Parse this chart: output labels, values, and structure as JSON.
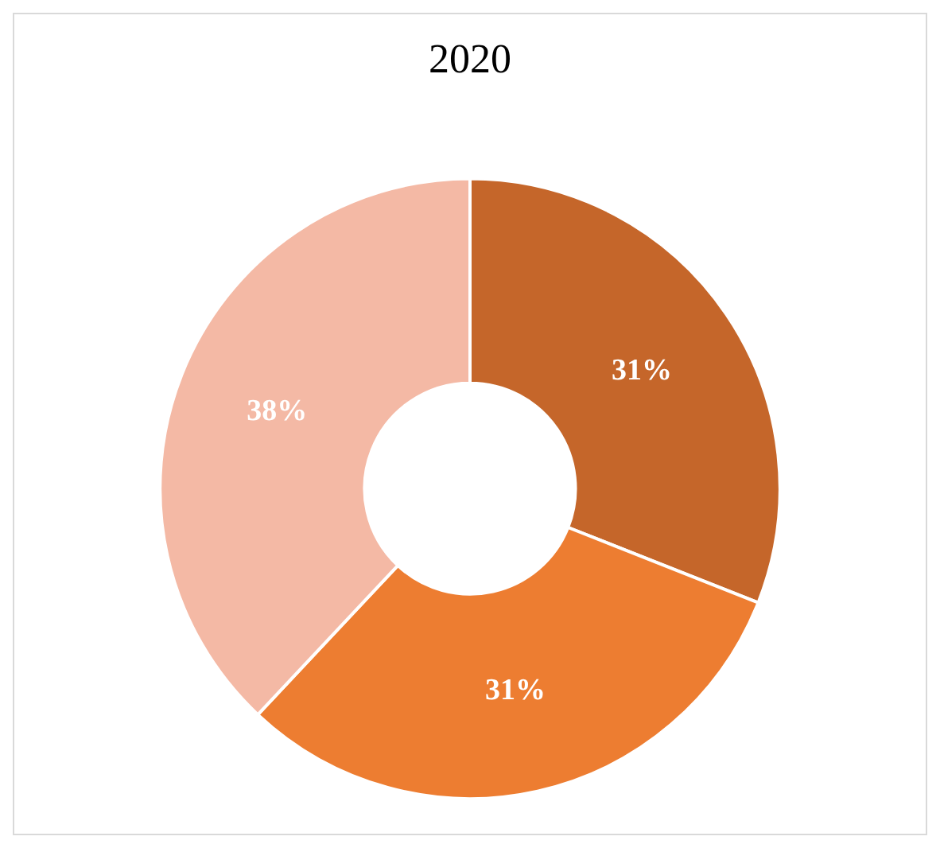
{
  "chart_data": {
    "type": "donut",
    "title": "2020",
    "categories": [
      null,
      null,
      null
    ],
    "values": [
      31,
      31,
      38
    ],
    "colors": [
      "#c5662a",
      "#ed7d31",
      "#f4b9a5"
    ],
    "value_labels": [
      "31%",
      "31%",
      "38%"
    ],
    "legend": false
  }
}
